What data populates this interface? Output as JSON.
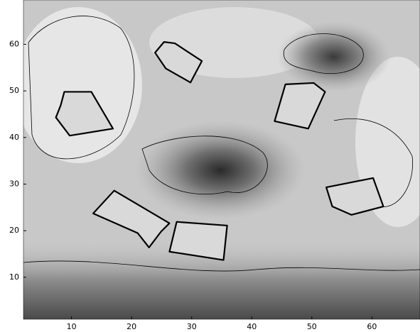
{
  "chart_data": {
    "type": "map",
    "xlim": [
      2,
      68
    ],
    "ylim": [
      1,
      69.5
    ],
    "xticks": [
      10,
      20,
      30,
      40,
      50,
      60
    ],
    "yticks": [
      10,
      20,
      30,
      40,
      50,
      60
    ],
    "color": "#d9d9d9",
    "regions": [
      {
        "x": [
          25.4,
          23.9,
          25.7,
          29.8,
          31.7,
          27.2
        ],
        "y": [
          60.5,
          58.2,
          54.8,
          51.8,
          56.4,
          60.2
        ]
      },
      {
        "x": [
          8.8,
          13.3,
          16.9,
          9.7,
          7.4,
          8.2
        ],
        "y": [
          49.8,
          49.8,
          41.9,
          40.4,
          44.3,
          46.9
        ]
      },
      {
        "x": [
          45.6,
          50.3,
          52.2,
          49.4,
          43.8
        ],
        "y": [
          51.4,
          51.7,
          49.8,
          41.9,
          43.5
        ]
      },
      {
        "x": [
          52.4,
          60.2,
          61.9,
          56.6,
          53.4
        ],
        "y": [
          29.3,
          31.3,
          25.2,
          23.4,
          25.2
        ]
      },
      {
        "x": [
          17.1,
          26.3,
          24.9,
          22.9,
          21.0,
          13.6
        ],
        "y": [
          28.6,
          21.6,
          19.8,
          16.4,
          19.5,
          23.7
        ]
      },
      {
        "x": [
          27.5,
          35.9,
          35.3,
          26.3
        ],
        "y": [
          21.9,
          21.1,
          13.7,
          15.5
        ]
      }
    ]
  }
}
